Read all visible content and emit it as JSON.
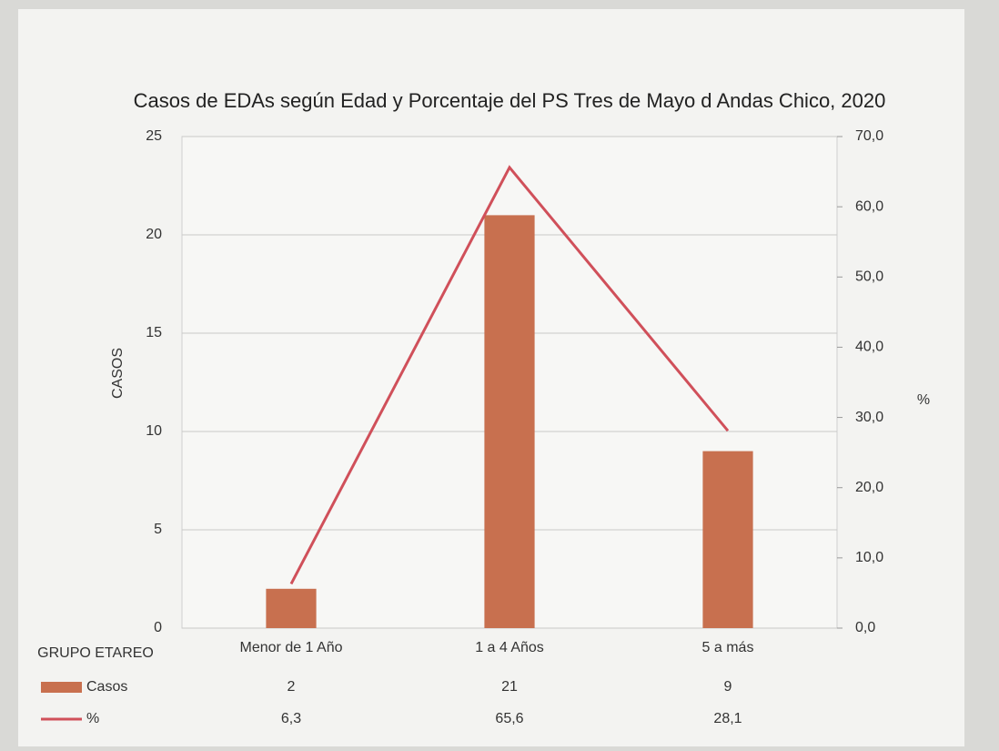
{
  "chart_data": {
    "type": "bar_line",
    "title": "Casos de EDAs según Edad  y Porcentaje del PS Tres de Mayo d Andas Chico, 2020",
    "ylabel": "CASOS",
    "y2label": "%",
    "xlabel": "GRUPO ETAREO",
    "categories": [
      "Menor de 1 Año",
      "1 a 4 Años",
      "5 a más"
    ],
    "series": [
      {
        "name": "Casos",
        "type": "bar",
        "color": "#c8704f",
        "values": [
          2,
          21,
          9
        ]
      },
      {
        "name": "%",
        "type": "line",
        "axis": "y2",
        "color": "#d0505a",
        "values": [
          6.3,
          65.6,
          28.1
        ],
        "value_labels": [
          "6,3",
          "65,6",
          "28,1"
        ]
      }
    ],
    "ylim": [
      0,
      25
    ],
    "yticks": [
      0,
      5,
      10,
      15,
      20,
      25
    ],
    "y2lim": [
      0,
      70
    ],
    "y2ticks": [
      {
        "value": 0,
        "label": "0,0"
      },
      {
        "value": 10,
        "label": "10,0"
      },
      {
        "value": 20,
        "label": "20,0"
      },
      {
        "value": 30,
        "label": "30,0"
      },
      {
        "value": 40,
        "label": "40,0"
      },
      {
        "value": 50,
        "label": "50,0"
      },
      {
        "value": 60,
        "label": "60,0"
      },
      {
        "value": 70,
        "label": "70,0"
      }
    ],
    "grid": true
  }
}
